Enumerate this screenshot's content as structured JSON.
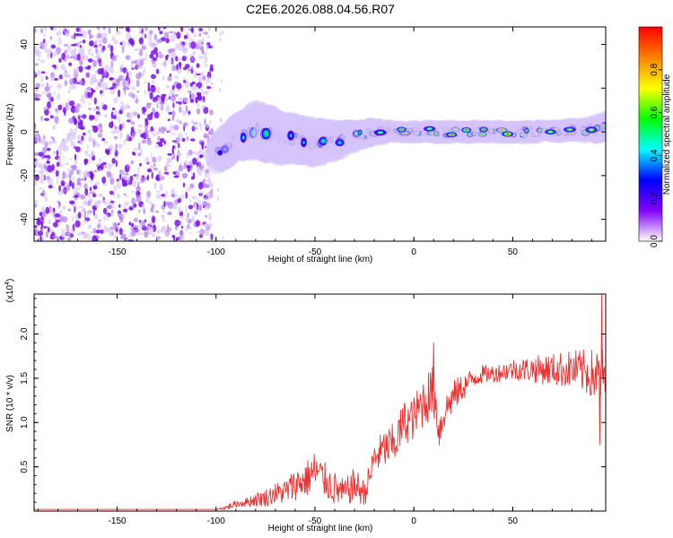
{
  "title": "C2E6.2026.088.04.56.R07",
  "colors": {
    "snr_line": "#ee3030",
    "axis": "#000000",
    "background": "#ffffff",
    "colormap": [
      "#ffffff",
      "#8000ff",
      "#0000ff",
      "#00ffff",
      "#00ff00",
      "#ffff00",
      "#ff8000",
      "#ff0000"
    ]
  },
  "chart_data": [
    {
      "type": "heatmap",
      "name": "spectrogram",
      "xlabel": "Height of straight line (km)",
      "ylabel": "Frequency (Hz)",
      "xlim": [
        -192,
        97
      ],
      "ylim": [
        -50,
        48
      ],
      "xticks": [
        -150,
        -100,
        -50,
        0,
        50
      ],
      "xtick_labels": [
        "-150",
        "-100",
        "-50",
        "0",
        "50"
      ],
      "yticks": [
        40,
        20,
        0,
        -20,
        -40
      ],
      "ytick_labels": [
        "40",
        "20",
        "0",
        "-20",
        "-40"
      ],
      "noise_region_x": [
        -192,
        -102
      ],
      "gap_region_x": [
        -102,
        -100
      ],
      "signal_band": {
        "x": [
          -100,
          -90,
          -80,
          -70,
          -60,
          -50,
          -40,
          -30,
          -20,
          -10,
          0,
          10,
          20,
          30,
          40,
          50,
          60,
          70,
          80,
          90,
          97
        ],
        "freq_center": [
          -10,
          -3,
          1,
          -2,
          -3,
          -5,
          -4,
          -2,
          0,
          0,
          0,
          0,
          0,
          0,
          0,
          0,
          0,
          0,
          1,
          1,
          2
        ],
        "freq_halfwidth": [
          4,
          5,
          6,
          6,
          5,
          5,
          4,
          3,
          2.5,
          2,
          2,
          2,
          2,
          2,
          2,
          2,
          2,
          2,
          2,
          2.5,
          3
        ],
        "amplitude": [
          0.35,
          0.45,
          0.55,
          0.45,
          0.4,
          0.42,
          0.45,
          0.55,
          0.7,
          0.8,
          0.85,
          0.88,
          0.9,
          0.9,
          0.88,
          0.9,
          0.88,
          0.85,
          0.9,
          0.85,
          0.75
        ]
      }
    },
    {
      "type": "colorbar",
      "name": "amplitude-scale",
      "label": "Normalized spectral amplitude",
      "range": [
        0,
        1
      ],
      "ticks": [
        0.0,
        0.2,
        0.4,
        0.6,
        0.8
      ],
      "tick_labels": [
        "0.0",
        "0.2",
        "0.4",
        "0.6",
        "0.8"
      ]
    },
    {
      "type": "line",
      "name": "snr",
      "xlabel": "Height of straight line (km)",
      "ylabel": "SNR (10 * v/v)",
      "y_scale_label": "(x10",
      "y_scale_exponent": "4",
      "y_scale_suffix": ")",
      "xlim": [
        -192,
        97
      ],
      "ylim": [
        0,
        2.45
      ],
      "xticks": [
        -150,
        -100,
        -50,
        0,
        50
      ],
      "xtick_labels": [
        "-150",
        "-100",
        "-50",
        "0",
        "50"
      ],
      "yticks": [
        0.5,
        1.0,
        1.5,
        2.0
      ],
      "ytick_labels": [
        "0.5",
        "1.0",
        "1.5",
        "2.0"
      ],
      "series": [
        {
          "name": "SNR",
          "x": [
            -192,
            -150,
            -110,
            -100,
            -95,
            -90,
            -85,
            -80,
            -75,
            -70,
            -65,
            -60,
            -55,
            -50,
            -45,
            -40,
            -35,
            -30,
            -25,
            -22,
            -20,
            -15,
            -10,
            -5,
            0,
            5,
            10,
            13,
            15,
            20,
            25,
            30,
            35,
            40,
            50,
            60,
            70,
            80,
            90,
            97
          ],
          "values": [
            0.02,
            0.02,
            0.02,
            0.02,
            0.04,
            0.08,
            0.1,
            0.13,
            0.15,
            0.2,
            0.22,
            0.3,
            0.35,
            0.45,
            0.35,
            0.25,
            0.2,
            0.3,
            0.2,
            0.4,
            0.6,
            0.7,
            0.75,
            1.0,
            1.05,
            1.25,
            1.35,
            0.9,
            1.1,
            1.3,
            1.4,
            1.5,
            1.55,
            1.55,
            1.6,
            1.6,
            1.6,
            1.6,
            1.55,
            1.5
          ],
          "noise_amplitude": [
            0.0,
            0.0,
            0.0,
            0.0,
            0.03,
            0.04,
            0.05,
            0.08,
            0.1,
            0.12,
            0.15,
            0.18,
            0.2,
            0.25,
            0.2,
            0.2,
            0.15,
            0.2,
            0.15,
            0.18,
            0.2,
            0.22,
            0.25,
            0.25,
            0.25,
            0.3,
            0.3,
            0.25,
            0.2,
            0.18,
            0.15,
            0.12,
            0.1,
            0.1,
            0.12,
            0.15,
            0.18,
            0.22,
            0.28,
            0.35
          ]
        }
      ],
      "spikes": [
        {
          "x": 10,
          "value": 1.9
        },
        {
          "x": 95,
          "value": 2.45
        },
        {
          "x": 94,
          "value": 0.75
        }
      ]
    }
  ]
}
